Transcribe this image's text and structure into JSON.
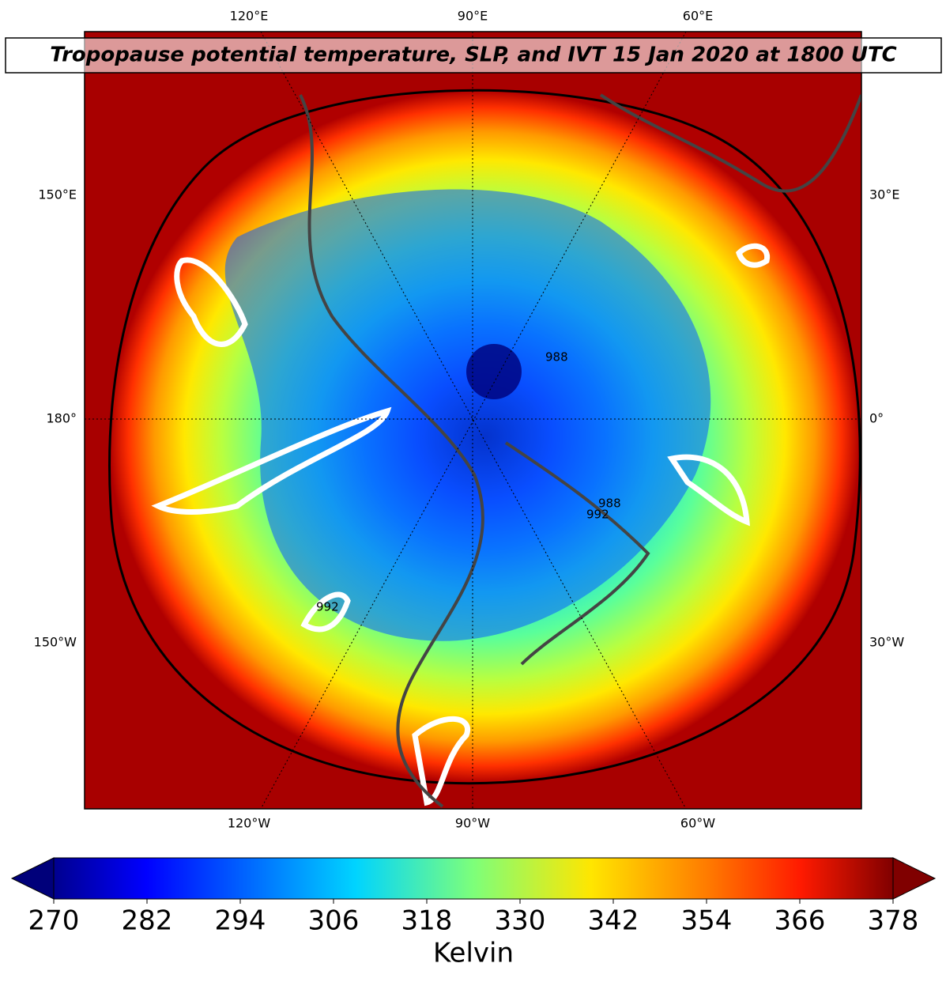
{
  "title": "Tropopause potential temperature, SLP, and IVT 15 Jan 2020 at 1800 UTC",
  "map": {
    "top_labels": [
      "120°E",
      "90°E",
      "60°E"
    ],
    "bottom_labels": [
      "120°W",
      "90°W",
      "60°W"
    ],
    "left_labels": [
      "150°E",
      "180°",
      "150°W"
    ],
    "right_labels": [
      "30°E",
      "0°",
      "30°W"
    ],
    "contour_labels": [
      "988",
      "992",
      "988",
      "992"
    ]
  },
  "colorbar": {
    "label": "Kelvin",
    "lim": [
      270,
      378
    ],
    "ticks": [
      270,
      282,
      294,
      306,
      318,
      330,
      342,
      354,
      366,
      378
    ]
  }
}
